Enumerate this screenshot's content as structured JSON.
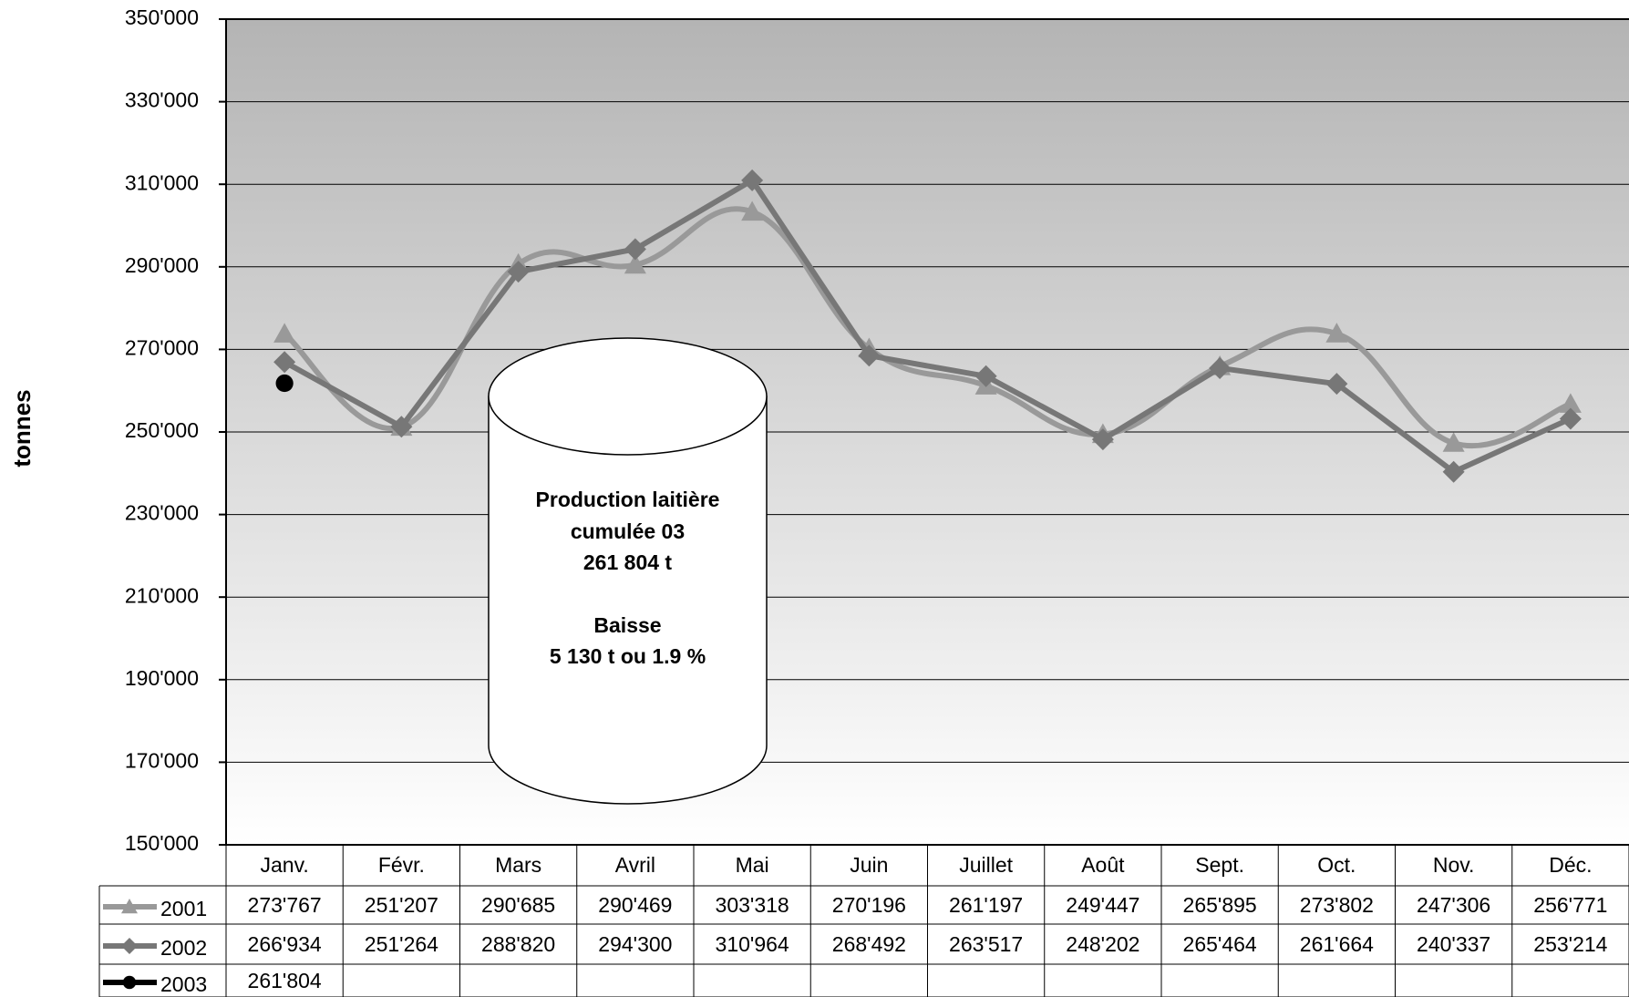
{
  "chart_data": {
    "type": "line",
    "y_label": "tonnes",
    "categories": [
      "Janv.",
      "Févr.",
      "Mars",
      "Avril",
      "Mai",
      "Juin",
      "Juillet",
      "Août",
      "Sept.",
      "Oct.",
      "Nov.",
      "Déc."
    ],
    "series": [
      {
        "name": "2001",
        "color": "#999999",
        "marker": "triangle",
        "smooth": true,
        "values": [
          273767,
          251207,
          290685,
          290469,
          303318,
          270196,
          261197,
          249447,
          265895,
          273802,
          247306,
          256771
        ],
        "value_labels": [
          "273'767",
          "251'207",
          "290'685",
          "290'469",
          "303'318",
          "270'196",
          "261'197",
          "249'447",
          "265'895",
          "273'802",
          "247'306",
          "256'771"
        ]
      },
      {
        "name": "2002",
        "color": "#777777",
        "marker": "diamond",
        "smooth": false,
        "values": [
          266934,
          251264,
          288820,
          294300,
          310964,
          268492,
          263517,
          248202,
          265464,
          261664,
          240337,
          253214
        ],
        "value_labels": [
          "266'934",
          "251'264",
          "288'820",
          "294'300",
          "310'964",
          "268'492",
          "263'517",
          "248'202",
          "265'464",
          "261'664",
          "240'337",
          "253'214"
        ]
      },
      {
        "name": "2003",
        "color": "#000000",
        "marker": "circle",
        "smooth": false,
        "values": [
          261804,
          null,
          null,
          null,
          null,
          null,
          null,
          null,
          null,
          null,
          null,
          null
        ],
        "value_labels": [
          "261'804",
          null,
          null,
          null,
          null,
          null,
          null,
          null,
          null,
          null,
          null,
          null
        ]
      }
    ],
    "ylim": [
      150000,
      350000
    ],
    "yticks": [
      {
        "value": 150000,
        "label": "150'000"
      },
      {
        "value": 170000,
        "label": "170'000"
      },
      {
        "value": 190000,
        "label": "190'000"
      },
      {
        "value": 210000,
        "label": "210'000"
      },
      {
        "value": 230000,
        "label": "230'000"
      },
      {
        "value": 250000,
        "label": "250'000"
      },
      {
        "value": 270000,
        "label": "270'000"
      },
      {
        "value": 290000,
        "label": "290'000"
      },
      {
        "value": 310000,
        "label": "310'000"
      },
      {
        "value": 330000,
        "label": "330'000"
      },
      {
        "value": 350000,
        "label": "350'000"
      }
    ],
    "grid": true,
    "annotation": {
      "lines": [
        "Production laitière",
        "cumulée 03",
        "261 804 t",
        "Baisse",
        "5 130 t ou 1.9 %"
      ]
    }
  }
}
